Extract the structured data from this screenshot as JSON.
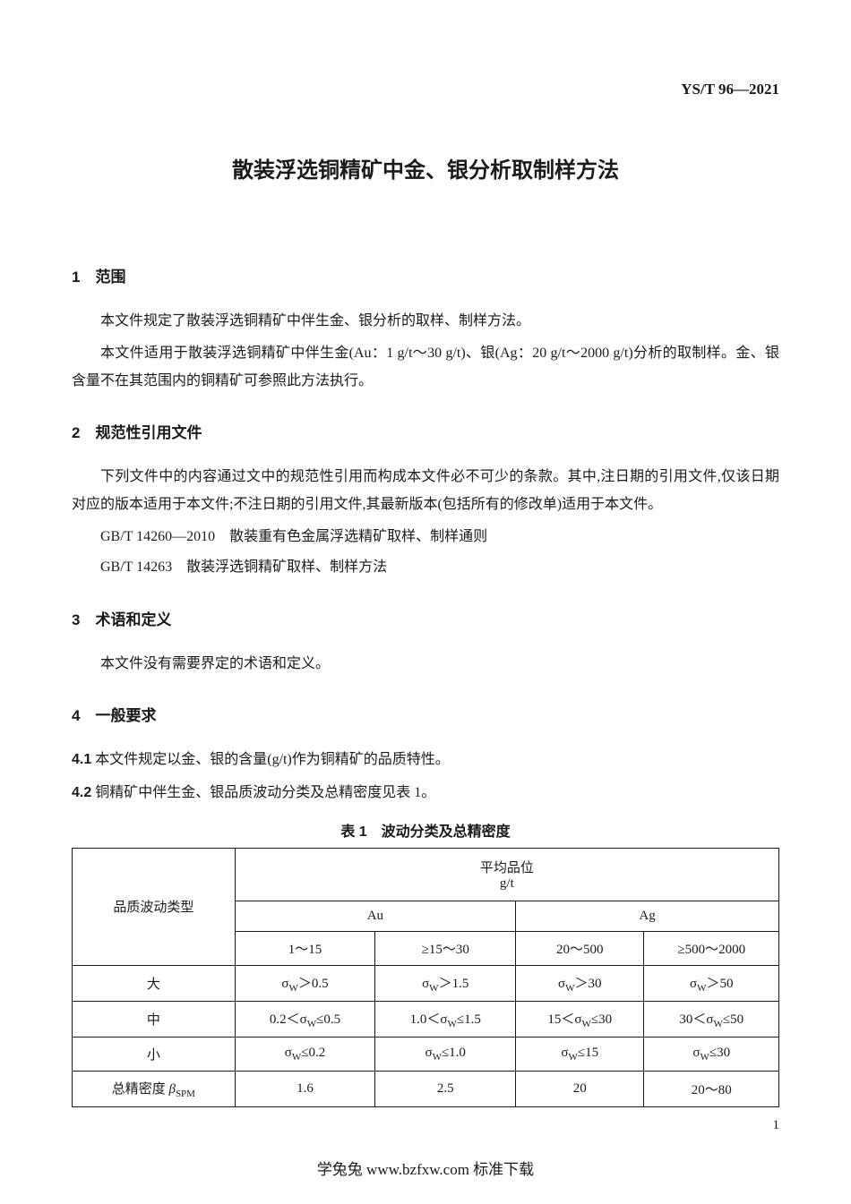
{
  "doc_code": "YS/T 96—2021",
  "main_title": "散装浮选铜精矿中金、银分析取制样方法",
  "s1_heading": "1　范围",
  "s1_p1": "本文件规定了散装浮选铜精矿中伴生金、银分析的取样、制样方法。",
  "s1_p2": "本文件适用于散装浮选铜精矿中伴生金(Au：1 g/t～30 g/t)、银(Ag：20 g/t～2000 g/t)分析的取制样。金、银含量不在其范围内的铜精矿可参照此方法执行。",
  "s2_heading": "2　规范性引用文件",
  "s2_p1": "下列文件中的内容通过文中的规范性引用而构成本文件必不可少的条款。其中,注日期的引用文件,仅该日期对应的版本适用于本文件;不注日期的引用文件,其最新版本(包括所有的修改单)适用于本文件。",
  "s2_ref1": "GB/T 14260—2010　散装重有色金属浮选精矿取样、制样通则",
  "s2_ref2": "GB/T 14263　散装浮选铜精矿取样、制样方法",
  "s3_heading": "3　术语和定义",
  "s3_p1": "本文件没有需要界定的术语和定义。",
  "s4_heading": "4　一般要求",
  "s4_1_num": "4.1",
  "s4_1_text": "本文件规定以金、银的含量(g/t)作为铜精矿的品质特性。",
  "s4_2_num": "4.2",
  "s4_2_text": "铜精矿中伴生金、银品质波动分类及总精密度见表 1。",
  "table_caption": "表 1　波动分类及总精密度",
  "table": {
    "h_type": "品质波动类型",
    "h_avg_top": "平均品位",
    "h_avg_unit": "g/t",
    "h_au": "Au",
    "h_ag": "Ag",
    "col1": "1～15",
    "col2": "≥15～30",
    "col3": "20～500",
    "col4": "≥500～2000",
    "r_big": "大",
    "r_big_c1": "σ_W＞0.5",
    "r_big_c2": "σ_W＞1.5",
    "r_big_c3": "σ_W＞30",
    "r_big_c4": "σ_W＞50",
    "r_mid": "中",
    "r_mid_c1": "0.2＜σ_W≤0.5",
    "r_mid_c2": "1.0＜σ_W≤1.5",
    "r_mid_c3": "15＜σ_W≤30",
    "r_mid_c4": "30＜σ_W≤50",
    "r_sml": "小",
    "r_sml_c1": "σ_W≤0.2",
    "r_sml_c2": "σ_W≤1.0",
    "r_sml_c3": "σ_W≤15",
    "r_sml_c4": "σ_W≤30",
    "r_prec": "总精密度 β_SPM",
    "r_prec_c1": "1.6",
    "r_prec_c2": "2.5",
    "r_prec_c3": "20",
    "r_prec_c4": "20～80"
  },
  "page_num": "1",
  "footer": "学兔兔 www.bzfxw.com 标准下载"
}
